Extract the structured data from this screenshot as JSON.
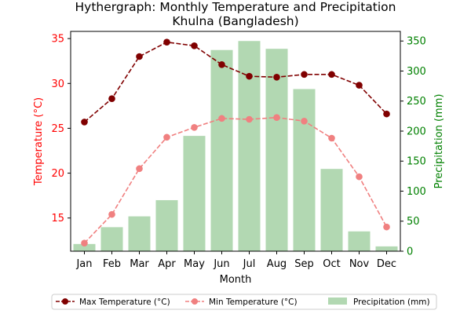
{
  "chart_data": {
    "type": "bar+line",
    "title_line1": "Hythergraph: Monthly Temperature and Precipitation",
    "title_line2": "Khulna (Bangladesh)",
    "xlabel": "Month",
    "ylabel_left": "Temperature (°C)",
    "ylabel_right": "Precipitation (mm)",
    "categories": [
      "Jan",
      "Feb",
      "Mar",
      "Apr",
      "May",
      "Jun",
      "Jul",
      "Aug",
      "Sep",
      "Oct",
      "Nov",
      "Dec"
    ],
    "ylim_left": [
      11.3,
      35.8
    ],
    "ylim_right": [
      0,
      366
    ],
    "yticks_left": [
      15,
      20,
      25,
      30,
      35
    ],
    "yticks_right": [
      0,
      50,
      100,
      150,
      200,
      250,
      300,
      350
    ],
    "series": [
      {
        "name": "Max Temperature (°C)",
        "kind": "line",
        "axis": "left",
        "color": "#800000",
        "values": [
          25.7,
          28.3,
          33.0,
          34.6,
          34.2,
          32.1,
          30.8,
          30.7,
          31.0,
          31.0,
          29.8,
          26.6
        ]
      },
      {
        "name": "Min Temperature (°C)",
        "kind": "line",
        "axis": "left",
        "color": "#f08080",
        "values": [
          12.2,
          15.4,
          20.5,
          24.0,
          25.1,
          26.1,
          26.0,
          26.2,
          25.8,
          23.9,
          19.6,
          14.0
        ]
      },
      {
        "name": "Precipitation (mm)",
        "kind": "bar",
        "axis": "right",
        "color": "#b2d8b2",
        "values": [
          12,
          40,
          58,
          85,
          192,
          335,
          350,
          337,
          270,
          137,
          33,
          8
        ]
      }
    ],
    "legend_position": "bottom-center",
    "grid": false
  }
}
